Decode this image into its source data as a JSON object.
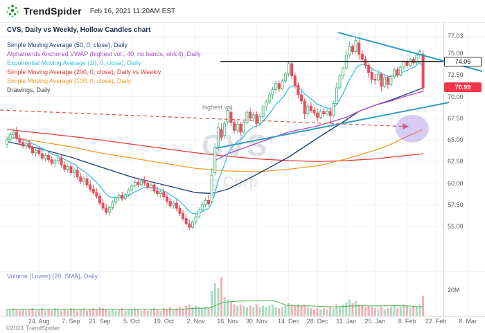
{
  "header": {
    "brand": "TrendSpider",
    "datetime": "Feb 16, 2021 11:20AM EST"
  },
  "chart_title": "CVS, Daily vs Weekly, Hollow Candles chart",
  "legend": [
    {
      "label": "Simple Moving Average (50, 0, close), Daily",
      "color": "#1f3f77"
    },
    {
      "label": "Alphatrends Anchored VWAP (highest vol., 40, no bands, ohlc4), Daily",
      "color": "#a94dc1"
    },
    {
      "label": "Exponential Moving Average (10, 0, close), Daily",
      "color": "#35c2e8"
    },
    {
      "label": "Simple Moving Average (200, 0, close), Daily vs Weekly",
      "color": "#e53935"
    },
    {
      "label": "Simple Moving Average (100, 0, close), Daily",
      "color": "#f59b23"
    },
    {
      "label": "Drawings, Daily",
      "color": "#444444"
    }
  ],
  "volume_pane": {
    "label": "Volume (Lower) (20, SMA), Daily",
    "scale_label": "20M"
  },
  "annotations": {
    "highest_vol": "highest vol.",
    "watermark_line1": "CVS",
    "watermark_line2": "g Corp"
  },
  "price_labels": {
    "hline": "74.06",
    "last": "70.99"
  },
  "footer": {
    "copyright": "©2021 TrendSpider"
  },
  "chart_data": {
    "type": "candlestick+volume",
    "symbol": "CVS",
    "timeframe": "Daily vs Weekly",
    "style": "Hollow Candles",
    "last_price": 70.99,
    "high_label": 77.03,
    "hline_price": 74.06,
    "y_ticks": [
      77.03,
      75,
      72.5,
      70,
      67.5,
      65,
      62.5,
      60,
      57.5,
      55
    ],
    "x_ticks": [
      {
        "label": "24. Aug",
        "i": 10
      },
      {
        "label": "7. Sep",
        "i": 20
      },
      {
        "label": "21. Sep",
        "i": 29
      },
      {
        "label": "5. Oct",
        "i": 39
      },
      {
        "label": "19. Oct",
        "i": 49
      },
      {
        "label": "2. Nov",
        "i": 59
      },
      {
        "label": "16. Nov",
        "i": 69
      },
      {
        "label": "30. Nov",
        "i": 78
      },
      {
        "label": "14. Dec",
        "i": 88
      },
      {
        "label": "28. Dec",
        "i": 97
      },
      {
        "label": "11. Jan",
        "i": 106
      },
      {
        "label": "25. Jan",
        "i": 115
      },
      {
        "label": "8. Feb",
        "i": 125
      },
      {
        "label": "22. Feb",
        "i": 134
      },
      {
        "label": "8. Mar",
        "i": 144
      }
    ],
    "colors": {
      "up": "#53b987",
      "down": "#eb4d5c",
      "vol_up": "rgba(83,185,135,0.5)",
      "vol_down": "rgba(235,77,92,0.45)",
      "vol_sma": "#4caf50"
    },
    "candles": [
      [
        64.5,
        65.3,
        64.1,
        65.0
      ],
      [
        65.0,
        65.9,
        64.8,
        65.6
      ],
      [
        65.6,
        66.3,
        65.2,
        65.9
      ],
      [
        65.9,
        66.5,
        64.9,
        65.2
      ],
      [
        65.2,
        65.6,
        64.4,
        64.7
      ],
      [
        64.7,
        65.2,
        64.0,
        64.3
      ],
      [
        64.3,
        64.9,
        63.8,
        64.6
      ],
      [
        64.6,
        65.0,
        63.9,
        64.1
      ],
      [
        64.1,
        64.4,
        63.2,
        63.5
      ],
      [
        63.5,
        64.0,
        63.0,
        63.8
      ],
      [
        63.8,
        64.2,
        63.1,
        63.4
      ],
      [
        63.4,
        63.8,
        62.6,
        62.9
      ],
      [
        62.9,
        63.5,
        62.5,
        63.2
      ],
      [
        63.2,
        63.6,
        62.4,
        62.7
      ],
      [
        62.7,
        63.1,
        62.0,
        62.3
      ],
      [
        62.3,
        62.9,
        61.9,
        62.6
      ],
      [
        62.6,
        63.2,
        62.2,
        62.9
      ],
      [
        62.9,
        63.3,
        61.8,
        62.1
      ],
      [
        62.1,
        62.5,
        61.3,
        61.6
      ],
      [
        61.6,
        62.2,
        61.2,
        61.9
      ],
      [
        61.9,
        62.3,
        60.9,
        61.2
      ],
      [
        61.2,
        61.8,
        60.6,
        61.5
      ],
      [
        61.5,
        61.9,
        60.4,
        60.7
      ],
      [
        60.7,
        61.2,
        59.9,
        60.2
      ],
      [
        60.2,
        60.8,
        59.7,
        60.5
      ],
      [
        60.5,
        60.9,
        59.5,
        59.8
      ],
      [
        59.8,
        60.3,
        59.0,
        59.3
      ],
      [
        59.3,
        59.8,
        58.6,
        58.9
      ],
      [
        58.9,
        59.4,
        58.2,
        58.5
      ],
      [
        58.5,
        58.9,
        57.4,
        57.7
      ],
      [
        57.7,
        58.2,
        56.8,
        57.1
      ],
      [
        57.1,
        57.6,
        56.3,
        56.6
      ],
      [
        56.6,
        57.4,
        56.2,
        57.2
      ],
      [
        57.2,
        58.0,
        56.9,
        57.8
      ],
      [
        57.8,
        58.5,
        57.5,
        58.3
      ],
      [
        58.3,
        58.9,
        57.9,
        58.6
      ],
      [
        58.6,
        59.0,
        57.9,
        58.2
      ],
      [
        58.2,
        58.9,
        58.0,
        58.7
      ],
      [
        58.7,
        59.4,
        58.4,
        59.2
      ],
      [
        59.2,
        59.9,
        58.9,
        59.7
      ],
      [
        59.7,
        60.4,
        59.4,
        60.1
      ],
      [
        60.1,
        60.6,
        59.5,
        59.8
      ],
      [
        59.8,
        60.5,
        59.6,
        60.3
      ],
      [
        60.3,
        60.8,
        59.7,
        60.0
      ],
      [
        60.0,
        60.4,
        59.2,
        59.5
      ],
      [
        59.5,
        60.1,
        59.1,
        59.8
      ],
      [
        59.8,
        60.0,
        58.8,
        59.1
      ],
      [
        59.1,
        59.6,
        58.5,
        58.8
      ],
      [
        58.8,
        59.3,
        58.3,
        59.0
      ],
      [
        59.0,
        59.4,
        58.1,
        58.4
      ],
      [
        58.4,
        58.8,
        57.6,
        57.9
      ],
      [
        57.9,
        58.3,
        57.1,
        57.4
      ],
      [
        57.4,
        58.0,
        57.0,
        57.7
      ],
      [
        57.7,
        58.1,
        56.8,
        57.1
      ],
      [
        57.1,
        57.5,
        56.2,
        56.5
      ],
      [
        56.5,
        56.9,
        55.6,
        55.9
      ],
      [
        55.9,
        56.4,
        55.0,
        55.3
      ],
      [
        55.3,
        55.8,
        54.6,
        54.9
      ],
      [
        54.9,
        55.7,
        54.7,
        55.5
      ],
      [
        55.5,
        56.4,
        55.2,
        56.1
      ],
      [
        56.1,
        57.2,
        55.9,
        56.9
      ],
      [
        56.9,
        57.8,
        56.6,
        57.5
      ],
      [
        57.5,
        58.3,
        57.2,
        58.0
      ],
      [
        58.0,
        58.6,
        57.3,
        57.6
      ],
      [
        57.9,
        61.8,
        57.7,
        60.9
      ],
      [
        61.2,
        64.6,
        60.8,
        64.1
      ],
      [
        64.3,
        67.0,
        63.7,
        66.4
      ],
      [
        66.2,
        66.9,
        64.9,
        65.3
      ],
      [
        65.5,
        67.2,
        65.1,
        66.9
      ],
      [
        67.1,
        68.9,
        66.8,
        68.4
      ],
      [
        68.2,
        68.8,
        66.6,
        67.0
      ],
      [
        67.0,
        67.5,
        65.7,
        66.1
      ],
      [
        66.1,
        67.2,
        65.8,
        66.8
      ],
      [
        66.8,
        67.1,
        65.5,
        65.9
      ],
      [
        65.9,
        67.3,
        65.6,
        67.0
      ],
      [
        67.0,
        68.5,
        66.8,
        68.2
      ],
      [
        68.2,
        68.7,
        67.2,
        67.5
      ],
      [
        67.5,
        68.2,
        67.1,
        67.9
      ],
      [
        67.9,
        68.3,
        66.5,
        66.9
      ],
      [
        66.9,
        68.0,
        66.6,
        67.7
      ],
      [
        67.7,
        69.1,
        67.4,
        68.8
      ],
      [
        68.8,
        69.7,
        68.3,
        69.4
      ],
      [
        69.4,
        70.5,
        69.1,
        70.2
      ],
      [
        70.2,
        71.1,
        69.7,
        70.8
      ],
      [
        70.8,
        71.8,
        70.4,
        71.5
      ],
      [
        71.5,
        71.9,
        70.5,
        70.9
      ],
      [
        70.9,
        72.1,
        70.7,
        71.8
      ],
      [
        71.8,
        72.9,
        71.5,
        72.6
      ],
      [
        72.6,
        74.1,
        72.3,
        73.8
      ],
      [
        73.8,
        74.0,
        72.0,
        72.4
      ],
      [
        72.4,
        72.8,
        70.9,
        71.3
      ],
      [
        71.3,
        71.6,
        69.8,
        70.2
      ],
      [
        70.2,
        70.6,
        69.1,
        69.5
      ],
      [
        69.5,
        69.8,
        67.4,
        68.0
      ],
      [
        68.0,
        69.2,
        67.7,
        68.9
      ],
      [
        68.9,
        69.3,
        68.1,
        68.4
      ],
      [
        68.4,
        68.8,
        67.8,
        68.1
      ],
      [
        68.1,
        68.6,
        67.1,
        67.6
      ],
      [
        67.6,
        68.6,
        67.4,
        68.3
      ],
      [
        68.3,
        68.7,
        67.7,
        68.0
      ],
      [
        68.0,
        68.6,
        67.8,
        68.3
      ],
      [
        68.3,
        68.8,
        66.9,
        67.8
      ],
      [
        67.8,
        69.5,
        67.6,
        69.2
      ],
      [
        69.2,
        71.6,
        69.0,
        71.0
      ],
      [
        71.0,
        72.6,
        70.8,
        72.4
      ],
      [
        72.4,
        73.5,
        72.0,
        73.3
      ],
      [
        73.3,
        75.3,
        73.1,
        74.8
      ],
      [
        74.8,
        76.4,
        74.5,
        75.8
      ],
      [
        75.8,
        76.1,
        74.8,
        75.2
      ],
      [
        75.2,
        77.03,
        75.0,
        76.5
      ],
      [
        76.2,
        76.6,
        74.3,
        74.9
      ],
      [
        74.9,
        75.4,
        74.0,
        74.3
      ],
      [
        74.3,
        74.7,
        73.2,
        73.6
      ],
      [
        73.6,
        73.9,
        72.2,
        72.8
      ],
      [
        72.8,
        73.3,
        71.5,
        72.0
      ],
      [
        72.0,
        72.6,
        71.4,
        71.9
      ],
      [
        71.9,
        72.9,
        71.7,
        72.6
      ],
      [
        72.6,
        72.8,
        70.6,
        71.2
      ],
      [
        71.2,
        72.5,
        71.0,
        72.2
      ],
      [
        72.2,
        72.4,
        70.9,
        71.4
      ],
      [
        71.4,
        72.5,
        71.2,
        72.3
      ],
      [
        72.3,
        73.3,
        72.0,
        73.1
      ],
      [
        73.1,
        73.4,
        72.2,
        72.5
      ],
      [
        72.5,
        73.6,
        72.3,
        73.4
      ],
      [
        73.4,
        74.2,
        73.1,
        74.0
      ],
      [
        74.0,
        74.4,
        73.3,
        73.6
      ],
      [
        73.6,
        74.5,
        73.4,
        74.3
      ],
      [
        74.3,
        74.6,
        73.6,
        73.9
      ],
      [
        73.9,
        75.1,
        73.7,
        74.8
      ],
      [
        74.8,
        75.5,
        74.4,
        75.2
      ],
      [
        74.9,
        75.4,
        70.5,
        70.99
      ]
    ],
    "volumes": [
      5,
      4,
      6,
      5,
      4,
      5,
      4,
      5,
      6,
      4,
      5,
      6,
      4,
      5,
      4,
      6,
      5,
      4,
      5,
      4,
      6,
      5,
      4,
      5,
      6,
      4,
      5,
      6,
      5,
      7,
      6,
      5,
      4,
      5,
      4,
      5,
      6,
      4,
      5,
      5,
      6,
      5,
      4,
      5,
      4,
      5,
      6,
      5,
      4,
      6,
      5,
      7,
      5,
      6,
      7,
      6,
      8,
      9,
      7,
      8,
      7,
      6,
      7,
      6,
      20,
      26,
      22,
      31,
      15,
      13,
      11,
      9,
      8,
      9,
      8,
      7,
      8,
      7,
      9,
      7,
      8,
      7,
      8,
      9,
      7,
      6,
      7,
      8,
      10,
      9,
      8,
      9,
      8,
      9,
      7,
      6,
      5,
      6,
      5,
      6,
      5,
      7,
      6,
      9,
      8,
      9,
      11,
      13,
      10,
      12,
      9,
      8,
      7,
      8,
      7,
      6,
      5,
      7,
      5,
      6,
      7,
      8,
      6,
      7,
      9,
      8,
      6,
      8,
      7,
      9,
      16
    ],
    "volume_sma_period": 20,
    "overlays": {
      "sma50": {
        "color": "#1f3f77",
        "points": [
          [
            0,
            64.8
          ],
          [
            10,
            64.0
          ],
          [
            20,
            63.0
          ],
          [
            29,
            61.9
          ],
          [
            39,
            60.7
          ],
          [
            49,
            59.8
          ],
          [
            59,
            58.9
          ],
          [
            64,
            58.8
          ],
          [
            69,
            59.3
          ],
          [
            78,
            61.0
          ],
          [
            88,
            63.0
          ],
          [
            97,
            65.2
          ],
          [
            106,
            67.3
          ],
          [
            110,
            68.3
          ],
          [
            115,
            69.0
          ],
          [
            120,
            69.6
          ],
          [
            125,
            70.3
          ],
          [
            130,
            71.0
          ]
        ]
      },
      "sma100": {
        "color": "#f59b23",
        "points": [
          [
            0,
            65.3
          ],
          [
            10,
            64.8
          ],
          [
            20,
            64.2
          ],
          [
            29,
            63.5
          ],
          [
            39,
            62.9
          ],
          [
            49,
            62.3
          ],
          [
            59,
            61.7
          ],
          [
            69,
            61.4
          ],
          [
            78,
            61.3
          ],
          [
            88,
            61.6
          ],
          [
            97,
            62.0
          ],
          [
            106,
            62.8
          ],
          [
            115,
            63.8
          ],
          [
            120,
            64.5
          ],
          [
            125,
            65.4
          ],
          [
            130,
            66.2
          ]
        ]
      },
      "sma200": {
        "color": "#e53935",
        "points": [
          [
            0,
            66.2
          ],
          [
            10,
            65.8
          ],
          [
            20,
            65.4
          ],
          [
            29,
            65.0
          ],
          [
            39,
            64.5
          ],
          [
            49,
            64.0
          ],
          [
            59,
            63.5
          ],
          [
            69,
            63.1
          ],
          [
            78,
            62.8
          ],
          [
            88,
            62.6
          ],
          [
            97,
            62.5
          ],
          [
            106,
            62.6
          ],
          [
            115,
            62.8
          ],
          [
            120,
            63.0
          ],
          [
            125,
            63.2
          ],
          [
            130,
            63.4
          ]
        ]
      },
      "vwap": {
        "color": "#a94dc1",
        "points": [
          [
            65,
            62.6
          ],
          [
            69,
            63.4
          ],
          [
            78,
            64.6
          ],
          [
            88,
            65.9
          ],
          [
            97,
            66.6
          ],
          [
            106,
            67.6
          ],
          [
            110,
            68.3
          ],
          [
            115,
            69.0
          ],
          [
            120,
            69.5
          ],
          [
            125,
            70.1
          ],
          [
            130,
            70.6
          ]
        ]
      },
      "ema10": {
        "color": "#35c2e8",
        "period": 10
      }
    },
    "drawings": {
      "downtrend": {
        "from": [
          103.5,
          77.4
        ],
        "to": [
          148.5,
          72.92
        ],
        "color": "#2d9fc4"
      },
      "uptrend": {
        "from": [
          65.4,
          64.04
        ],
        "to": [
          138.1,
          69.32
        ],
        "color": "#2d9fc4"
      },
      "hline": {
        "price": 74.06,
        "from_i": 66.7,
        "color": "#222222"
      },
      "dashed": {
        "from": [
          -2.16,
          68.44
        ],
        "to": [
          124.5,
          66.54
        ],
        "color": "#e05555"
      },
      "ellipse": {
        "i": 126.6,
        "price": 66.3,
        "color": "rgba(152,118,232,0.38)"
      }
    }
  }
}
